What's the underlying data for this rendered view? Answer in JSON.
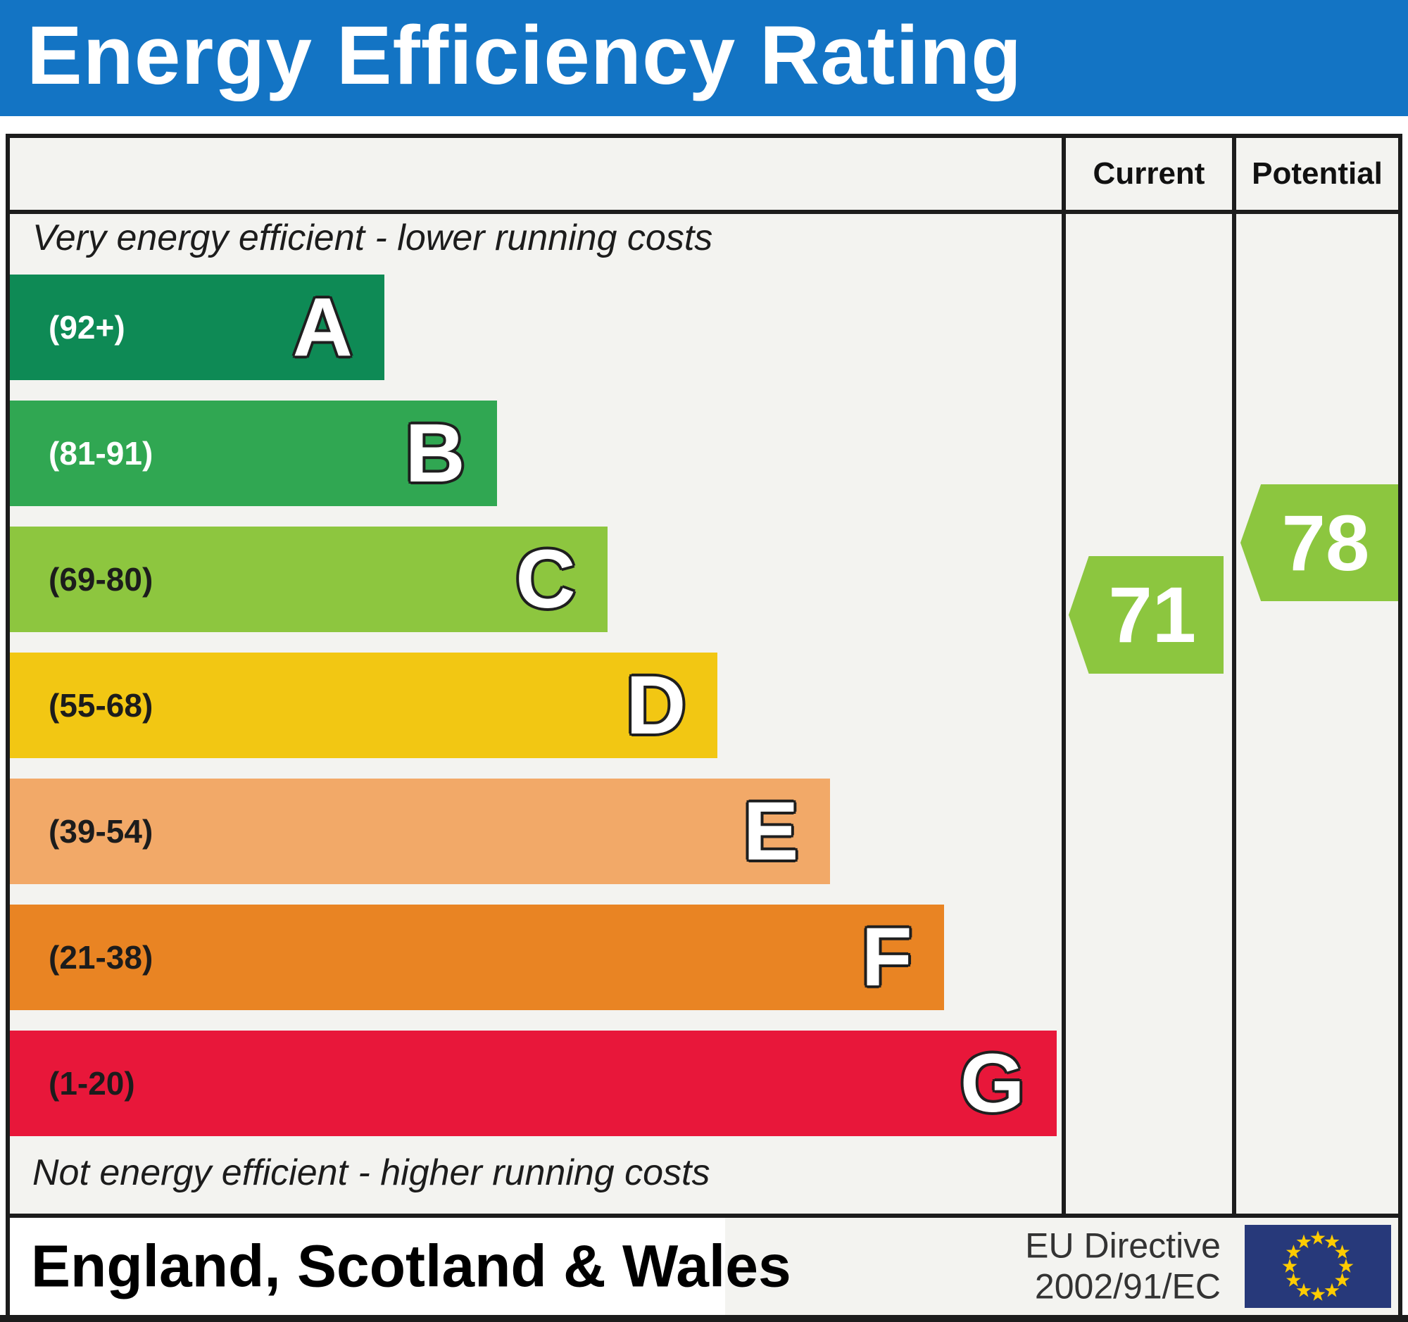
{
  "header": {
    "title": "Energy Efficiency Rating"
  },
  "table": {
    "columns": {
      "current": "Current",
      "potential": "Potential"
    },
    "top_note": "Very energy efficient - lower running costs",
    "bottom_note": "Not energy efficient - higher running costs"
  },
  "chart_data": {
    "type": "bar",
    "title": "Energy Efficiency Rating",
    "value_range": [
      1,
      100
    ],
    "bands": [
      {
        "letter": "A",
        "range_label": "(92+)",
        "range": [
          92,
          100
        ],
        "color": "#0e8a55",
        "label_color": "#ffffff",
        "width_pct": 35.6
      },
      {
        "letter": "B",
        "range_label": "(81-91)",
        "range": [
          81,
          91
        ],
        "color": "#30a752",
        "label_color": "#ffffff",
        "width_pct": 46.3
      },
      {
        "letter": "C",
        "range_label": "(69-80)",
        "range": [
          69,
          80
        ],
        "color": "#8dc63f",
        "label_color": "#1c1c1c",
        "width_pct": 56.8
      },
      {
        "letter": "D",
        "range_label": "(55-68)",
        "range": [
          55,
          68
        ],
        "color": "#f2c713",
        "label_color": "#1c1c1c",
        "width_pct": 67.3
      },
      {
        "letter": "E",
        "range_label": "(39-54)",
        "range": [
          39,
          54
        ],
        "color": "#f2a968",
        "label_color": "#1c1c1c",
        "width_pct": 78.0
      },
      {
        "letter": "F",
        "range_label": "(21-38)",
        "range": [
          21,
          38
        ],
        "color": "#e98423",
        "label_color": "#1c1c1c",
        "width_pct": 88.8
      },
      {
        "letter": "G",
        "range_label": "(1-20)",
        "range": [
          1,
          20
        ],
        "color": "#e8173a",
        "label_color": "#1c1c1c",
        "width_pct": 99.5
      }
    ],
    "current": {
      "value": 71,
      "band": "C",
      "color": "#8cc63f"
    },
    "potential": {
      "value": 78,
      "band": "C",
      "color": "#8cc63f"
    },
    "legend_position": "none",
    "grid": false
  },
  "footer": {
    "region": "England, Scotland & Wales",
    "directive": [
      "EU Directive",
      "2002/91/EC"
    ],
    "eu_flag": {
      "background": "#27397a",
      "star_color": "#ffcc00",
      "stars": 12
    }
  },
  "colors": {
    "header_bg": "#1374c4",
    "header_text": "#ffffff",
    "panel_bg": "#f3f3f0",
    "border": "#1c1c1c",
    "arrow_green": "#8cc63f"
  }
}
